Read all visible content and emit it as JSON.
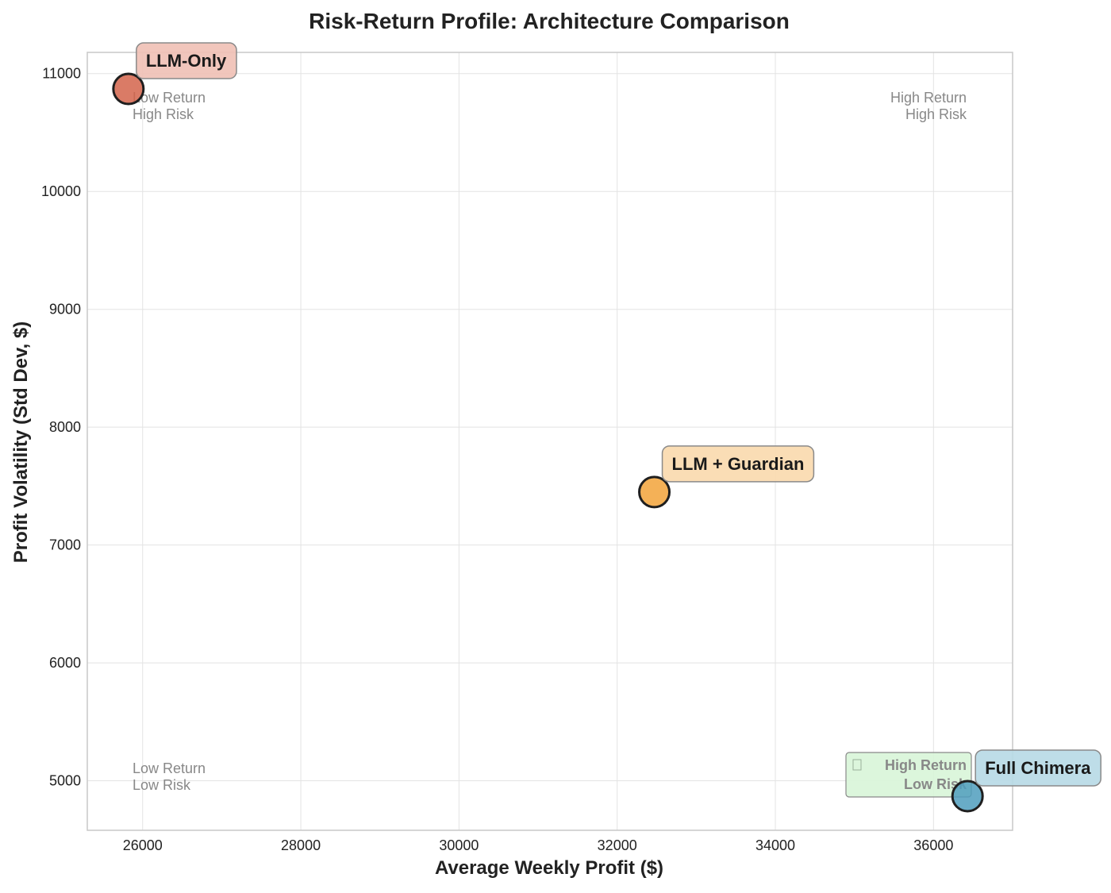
{
  "chart_data": {
    "type": "scatter",
    "title": "Risk-Return Profile: Architecture Comparison",
    "xlabel": "Average Weekly Profit ($)",
    "ylabel": "Profit Volatility (Std Dev, $)",
    "xlim": [
      25300,
      37000
    ],
    "ylim": [
      4580,
      11180
    ],
    "x_ticks": [
      26000,
      28000,
      30000,
      32000,
      34000,
      36000
    ],
    "y_ticks": [
      5000,
      6000,
      7000,
      8000,
      9000,
      10000,
      11000
    ],
    "grid": true,
    "series": [
      {
        "name": "LLM-Only",
        "x": 25820,
        "y": 10870,
        "color": "#d4644b",
        "label_bg": "#efc0b5"
      },
      {
        "name": "LLM + Guardian",
        "x": 32470,
        "y": 7450,
        "color": "#f2a33a",
        "label_bg": "#fad9ad"
      },
      {
        "name": "Full Chimera",
        "x": 36430,
        "y": 4870,
        "color": "#4f9dbd",
        "label_bg": "#b7d9e5"
      }
    ],
    "quadrant_labels": [
      {
        "line1": "Low Return",
        "line2": "High Risk",
        "position": "top-left"
      },
      {
        "line1": "High Return",
        "line2": "High Risk",
        "position": "top-right"
      },
      {
        "line1": "Low Return",
        "line2": "Low Risk",
        "position": "bottom-left"
      },
      {
        "line1": "High Return",
        "line2": "Low Risk",
        "position": "bottom-right",
        "icon": "checkmark-icon",
        "highlight_color": "#d8f5d8"
      }
    ]
  }
}
